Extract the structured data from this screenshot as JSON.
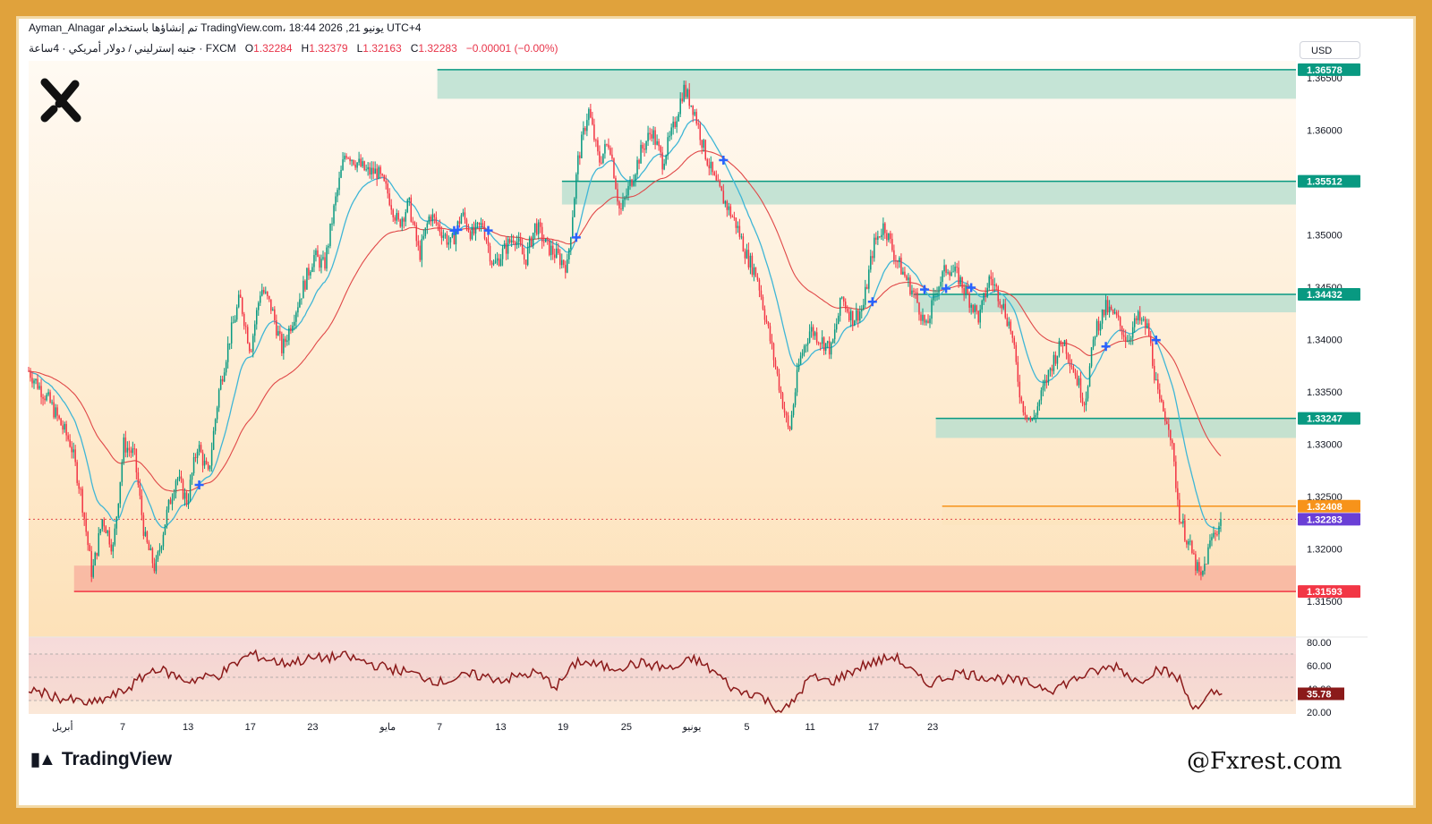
{
  "header": {
    "line1": "Ayman_Alnagar تم إنشاؤها باستخدام TradingView.com، 18:44 2026 ,21 يونيو UTC+4",
    "symbol": "جنيه إسترليني / دولار أمريكي · 4ساعة · FXCM",
    "open_label": "O",
    "open": "1.32284",
    "high_label": "H",
    "high": "1.32379",
    "low_label": "L",
    "low": "1.32163",
    "close_label": "C",
    "close": "1.32283",
    "change": "−0.00001 (−0.00%)"
  },
  "currency_button": "USD",
  "footer": {
    "brand": "TradingView",
    "site": "@Fxrest.com"
  },
  "colors": {
    "up": "#089981",
    "down": "#f23645",
    "fast_ma": "#3fb6d6",
    "slow_ma": "#e04848",
    "zone_fill": "#b7dfcf",
    "support_fill": "#f8b4a0",
    "rsi_line": "#8b1a1a",
    "frame": "#e0a23c"
  },
  "chart_data": {
    "type": "candlestick",
    "price_axis": {
      "ticks": [
        "1.36500",
        "1.36000",
        "1.35500",
        "1.35000",
        "1.34500",
        "1.34000",
        "1.33500",
        "1.33000",
        "1.32500",
        "1.32000",
        "1.31500"
      ],
      "range": [
        1.3135,
        1.3675
      ]
    },
    "x_axis": {
      "ticks": [
        "أبريل",
        "7",
        "13",
        "17",
        "23",
        "مايو",
        "7",
        "13",
        "19",
        "25",
        "يونيو",
        "5",
        "11",
        "17",
        "23"
      ]
    },
    "resistance_zones": [
      {
        "label": "1.36578",
        "top": 1.36578,
        "bottom": 1.363,
        "start_day": 38.7
      },
      {
        "label": "1.35512",
        "top": 1.35512,
        "bottom": 1.3529,
        "start_day": 50.5
      },
      {
        "label": "1.34432",
        "top": 1.34432,
        "bottom": 1.3426,
        "start_day": 83.8
      },
      {
        "label": "1.33247",
        "top": 1.33247,
        "bottom": 1.3306,
        "start_day": 85.9
      }
    ],
    "support_zone": {
      "label": "1.31593",
      "top": 1.3184,
      "bottom": 1.31593,
      "start_day": 4.3
    },
    "recent_zone": {
      "label": "1.32408",
      "top": 1.32408,
      "bottom": 1.3223,
      "start_day": 86.5
    },
    "current_price": {
      "label": "1.32283",
      "value": 1.32283
    },
    "path": [
      [
        0,
        1.337
      ],
      [
        2,
        1.334
      ],
      [
        4,
        1.33
      ],
      [
        5,
        1.325
      ],
      [
        6,
        1.3175
      ],
      [
        7,
        1.323
      ],
      [
        8,
        1.32
      ],
      [
        9,
        1.33
      ],
      [
        10,
        1.329
      ],
      [
        11,
        1.321
      ],
      [
        12,
        1.318
      ],
      [
        13,
        1.323
      ],
      [
        14,
        1.327
      ],
      [
        15,
        1.3245
      ],
      [
        16,
        1.33
      ],
      [
        17,
        1.327
      ],
      [
        18,
        1.335
      ],
      [
        19,
        1.34
      ],
      [
        20,
        1.344
      ],
      [
        21,
        1.339
      ],
      [
        22,
        1.345
      ],
      [
        23,
        1.343
      ],
      [
        24,
        1.339
      ],
      [
        25,
        1.342
      ],
      [
        27,
        1.348
      ],
      [
        28,
        1.347
      ],
      [
        29,
        1.353
      ],
      [
        30,
        1.358
      ],
      [
        31,
        1.357
      ],
      [
        32,
        1.356
      ],
      [
        33,
        1.356
      ],
      [
        34,
        1.354
      ],
      [
        35,
        1.351
      ],
      [
        36,
        1.353
      ],
      [
        37,
        1.348
      ],
      [
        38,
        1.352
      ],
      [
        40,
        1.349
      ],
      [
        41,
        1.352
      ],
      [
        42,
        1.35
      ],
      [
        43,
        1.351
      ],
      [
        44,
        1.347
      ],
      [
        46,
        1.35
      ],
      [
        47,
        1.3475
      ],
      [
        48,
        1.351
      ],
      [
        49,
        1.349
      ],
      [
        50,
        1.348
      ],
      [
        51,
        1.347
      ],
      [
        52,
        1.357
      ],
      [
        53,
        1.362
      ],
      [
        54,
        1.357
      ],
      [
        55,
        1.359
      ],
      [
        56,
        1.352
      ],
      [
        57,
        1.355
      ],
      [
        58,
        1.358
      ],
      [
        59,
        1.36
      ],
      [
        60,
        1.357
      ],
      [
        61,
        1.36
      ],
      [
        62,
        1.364
      ],
      [
        63,
        1.362
      ],
      [
        64,
        1.358
      ],
      [
        65,
        1.355
      ],
      [
        66,
        1.353
      ],
      [
        67,
        1.351
      ],
      [
        68,
        1.348
      ],
      [
        69,
        1.346
      ],
      [
        70,
        1.341
      ],
      [
        71,
        1.336
      ],
      [
        72,
        1.331
      ],
      [
        73,
        1.338
      ],
      [
        74,
        1.341
      ],
      [
        75,
        1.34
      ],
      [
        76,
        1.339
      ],
      [
        77,
        1.344
      ],
      [
        78,
        1.342
      ],
      [
        79,
        1.343
      ],
      [
        80,
        1.349
      ],
      [
        81,
        1.351
      ],
      [
        82,
        1.348
      ],
      [
        83,
        1.346
      ],
      [
        84,
        1.344
      ],
      [
        85,
        1.341
      ],
      [
        86,
        1.345
      ],
      [
        87,
        1.347
      ],
      [
        88,
        1.346
      ],
      [
        89,
        1.344
      ],
      [
        90,
        1.342
      ],
      [
        91,
        1.346
      ],
      [
        92,
        1.344
      ],
      [
        93,
        1.341
      ],
      [
        94,
        1.334
      ],
      [
        95,
        1.332
      ],
      [
        96,
        1.335
      ],
      [
        97,
        1.338
      ],
      [
        98,
        1.34
      ],
      [
        99,
        1.337
      ],
      [
        100,
        1.334
      ],
      [
        101,
        1.341
      ],
      [
        102,
        1.343
      ],
      [
        103,
        1.342
      ],
      [
        104,
        1.34
      ],
      [
        105,
        1.342
      ],
      [
        106,
        1.341
      ],
      [
        107,
        1.334
      ],
      [
        108,
        1.332
      ],
      [
        109,
        1.323
      ],
      [
        110,
        1.32
      ],
      [
        111,
        1.317
      ],
      [
        112,
        1.321
      ],
      [
        113,
        1.3228
      ]
    ],
    "rsi": {
      "ticks": [
        "80.00",
        "60.00",
        "40.00",
        "20.00"
      ],
      "range": [
        20,
        80
      ],
      "current_label": "35.78",
      "current": 35.78,
      "path": [
        [
          0,
          40
        ],
        [
          3,
          32
        ],
        [
          6,
          27
        ],
        [
          9,
          38
        ],
        [
          12,
          58
        ],
        [
          15,
          47
        ],
        [
          18,
          52
        ],
        [
          21,
          70
        ],
        [
          24,
          62
        ],
        [
          27,
          66
        ],
        [
          30,
          68
        ],
        [
          33,
          60
        ],
        [
          36,
          54
        ],
        [
          39,
          46
        ],
        [
          42,
          52
        ],
        [
          45,
          48
        ],
        [
          48,
          54
        ],
        [
          50,
          42
        ],
        [
          52,
          64
        ],
        [
          55,
          58
        ],
        [
          58,
          62
        ],
        [
          61,
          57
        ],
        [
          63,
          66
        ],
        [
          65,
          54
        ],
        [
          67,
          38
        ],
        [
          69,
          36
        ],
        [
          71,
          22
        ],
        [
          72,
          24
        ],
        [
          74,
          50
        ],
        [
          76,
          46
        ],
        [
          79,
          60
        ],
        [
          82,
          68
        ],
        [
          85,
          44
        ],
        [
          88,
          54
        ],
        [
          91,
          50
        ],
        [
          94,
          46
        ],
        [
          97,
          40
        ],
        [
          100,
          52
        ],
        [
          103,
          60
        ],
        [
          105,
          46
        ],
        [
          107,
          58
        ],
        [
          109,
          48
        ],
        [
          110,
          28
        ],
        [
          111,
          24
        ],
        [
          112,
          36
        ],
        [
          113,
          36
        ]
      ]
    }
  }
}
